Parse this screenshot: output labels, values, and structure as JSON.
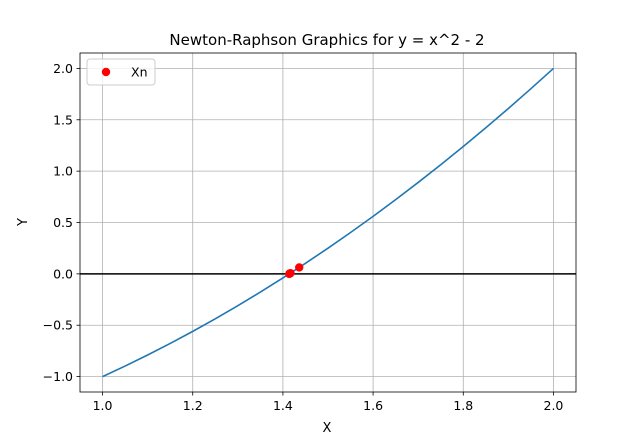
{
  "chart_data": {
    "type": "line",
    "title": "Newton-Raphson Graphics for y = x^2 - 2",
    "xlabel": "X",
    "ylabel": "Y",
    "xlim": [
      0.95,
      2.05
    ],
    "ylim": [
      -1.15,
      2.15
    ],
    "xticks": [
      1.0,
      1.2,
      1.4,
      1.6,
      1.8,
      2.0
    ],
    "xtick_labels": [
      "1.0",
      "1.2",
      "1.4",
      "1.6",
      "1.8",
      "2.0"
    ],
    "yticks": [
      -1.0,
      -0.5,
      0.0,
      0.5,
      1.0,
      1.5,
      2.0
    ],
    "ytick_labels": [
      "−1.0",
      "−0.5",
      "0.0",
      "0.5",
      "1.0",
      "1.5",
      "2.0"
    ],
    "grid": true,
    "legend_position": "top-left",
    "curve": {
      "function": "x^2 - 2",
      "x": [
        1.0,
        1.05,
        1.1,
        1.15,
        1.2,
        1.25,
        1.3,
        1.35,
        1.4,
        1.45,
        1.5,
        1.55,
        1.6,
        1.65,
        1.7,
        1.75,
        1.8,
        1.85,
        1.9,
        1.95,
        2.0
      ],
      "y": [
        -1.0,
        -0.8975,
        -0.79,
        -0.6775,
        -0.56,
        -0.4375,
        -0.31,
        -0.1775,
        -0.04,
        0.1025,
        0.25,
        0.4025,
        0.56,
        0.7225,
        0.89,
        1.0625,
        1.24,
        1.4225,
        1.61,
        1.8025,
        2.0
      ],
      "color": "#1f77b4"
    },
    "baseline": {
      "y": 0,
      "color": "#000000"
    },
    "series": [
      {
        "name": "Xn",
        "type": "scatter",
        "color": "#ff0000",
        "x": [
          1.4167,
          1.4142,
          1.4362
        ],
        "y": [
          0.0069,
          0.0,
          0.0627
        ]
      }
    ]
  }
}
